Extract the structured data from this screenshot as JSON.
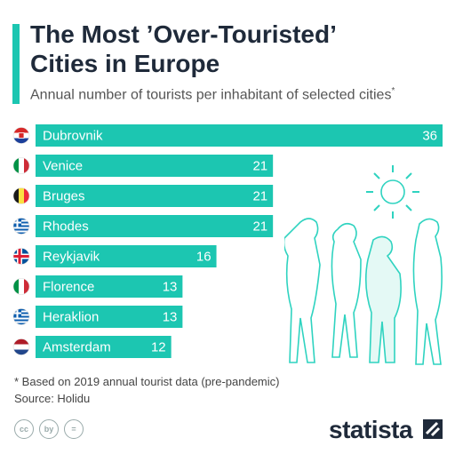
{
  "header": {
    "title_line1": "The Most ’Over-Touristed’",
    "title_line2": "Cities in Europe",
    "subtitle": "Annual number of tourists per inhabitant of selected cities",
    "subtitle_mark": "*"
  },
  "chart_data": {
    "type": "bar",
    "orientation": "horizontal",
    "categories": [
      "Dubrovnik",
      "Venice",
      "Bruges",
      "Rhodes",
      "Reykjavik",
      "Florence",
      "Heraklion",
      "Amsterdam"
    ],
    "values": [
      36,
      21,
      21,
      21,
      16,
      13,
      13,
      12
    ],
    "flags": [
      "croatia",
      "italy",
      "belgium",
      "greece",
      "iceland",
      "italy",
      "greece",
      "netherlands"
    ],
    "bar_color": "#1cc6b1",
    "xlim": [
      0,
      36
    ]
  },
  "footer": {
    "note": "* Based on 2019 annual tourist data (pre-pandemic)",
    "source": "Source: Holidu",
    "logo": "statista",
    "cc_icons": [
      "cc",
      "by",
      "="
    ]
  }
}
